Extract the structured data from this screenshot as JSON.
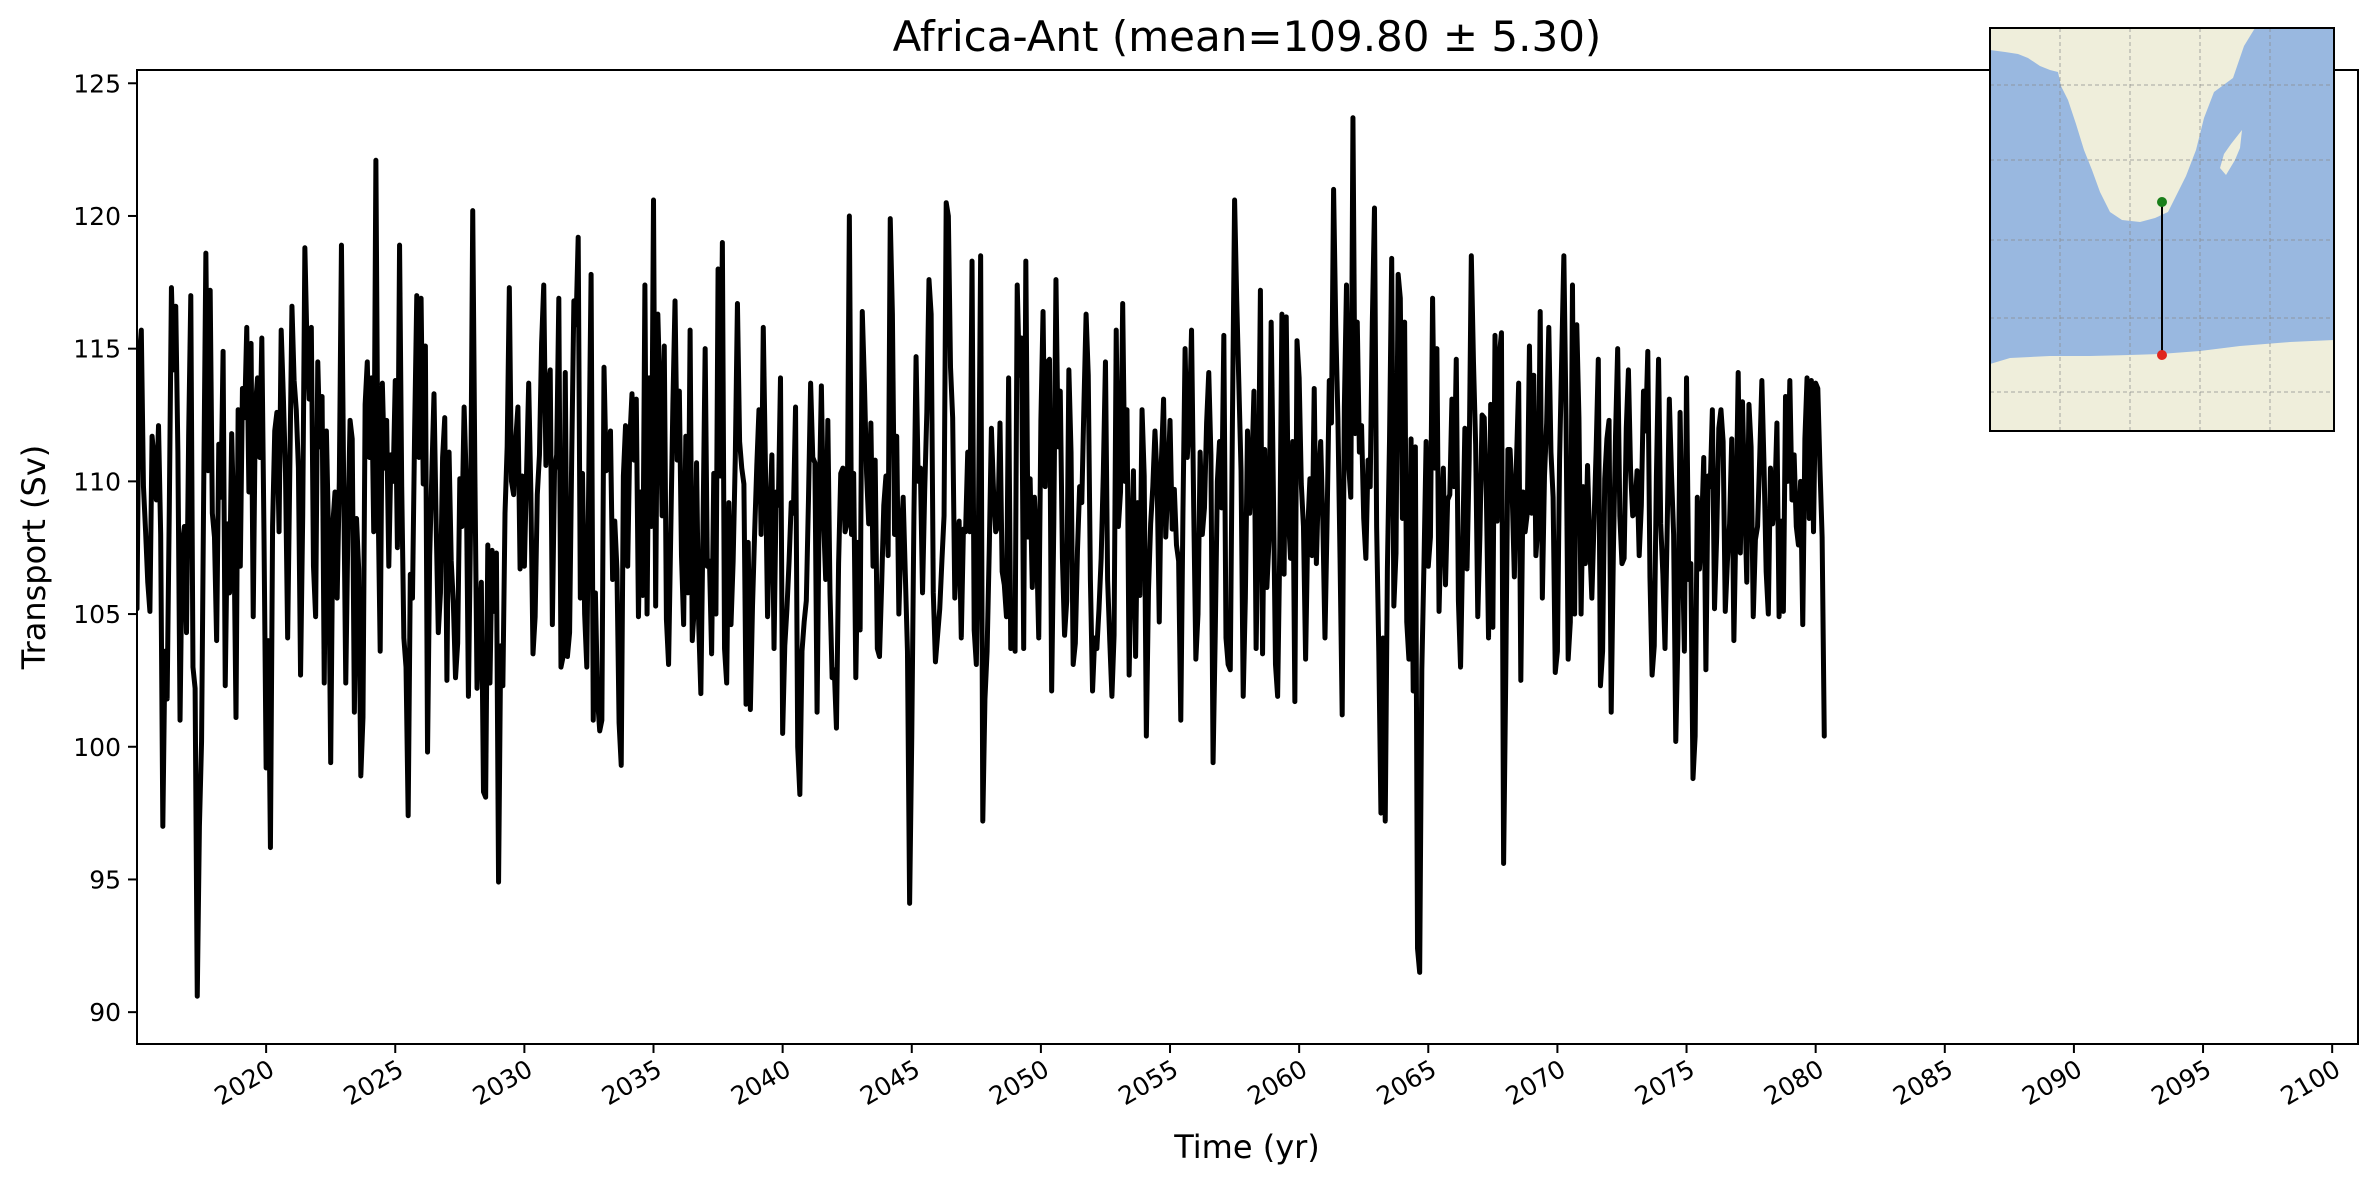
{
  "chart_data": {
    "type": "line",
    "title": "Africa-Ant (mean=109.80 ± 5.30)",
    "xlabel": "Time (yr)",
    "ylabel": "Transport (Sv)",
    "xlim": [
      2015.0,
      2101.0
    ],
    "ylim": [
      88.8,
      125.5
    ],
    "x_ticks": [
      2020,
      2025,
      2030,
      2035,
      2040,
      2045,
      2050,
      2055,
      2060,
      2065,
      2070,
      2075,
      2080,
      2085,
      2090,
      2095,
      2100
    ],
    "y_ticks": [
      90,
      95,
      100,
      105,
      110,
      115,
      120,
      125
    ],
    "x_tick_rotation": "30 degrees",
    "grid": false,
    "legend": "none",
    "series": [
      {
        "color": "#000000",
        "x_start": 2015.0,
        "x_step_months": 1,
        "values": [
          105.2,
          114.6,
          115.7,
          109.8,
          108.1,
          106.2,
          105.1,
          111.7,
          110.8,
          109.3,
          112.1,
          108.0,
          97.0,
          103.6,
          101.8,
          108.9,
          117.3,
          114.2,
          116.6,
          111.1,
          101.0,
          107.6,
          108.3,
          104.3,
          111.7,
          117.0,
          103.0,
          102.2,
          90.6,
          97.0,
          100.2,
          109.8,
          118.6,
          110.4,
          117.2,
          108.8,
          107.9,
          104.0,
          111.4,
          109.4,
          114.9,
          102.3,
          108.4,
          105.8,
          111.8,
          108.3,
          101.1,
          112.7,
          106.8,
          113.5,
          112.4,
          115.8,
          109.6,
          115.2,
          104.9,
          112.8,
          113.9,
          110.9,
          115.4,
          108.0,
          99.2,
          104.0,
          96.2,
          108.3,
          111.9,
          112.6,
          108.1,
          115.7,
          113.2,
          110.3,
          104.1,
          110.4,
          116.6,
          113.8,
          112.7,
          110.5,
          102.7,
          108.7,
          118.8,
          115.1,
          113.1,
          115.8,
          106.8,
          104.9,
          114.5,
          111.3,
          113.2,
          102.4,
          111.9,
          108.0,
          99.4,
          108.4,
          109.6,
          105.6,
          110.0,
          118.9,
          110.2,
          102.4,
          108.2,
          112.3,
          111.6,
          101.3,
          108.6,
          106.7,
          98.9,
          101.1,
          112.9,
          114.5,
          110.9,
          113.9,
          108.1,
          122.1,
          109.4,
          103.6,
          113.7,
          110.5,
          112.3,
          106.8,
          111.0,
          110.0,
          113.8,
          107.5,
          118.9,
          109.8,
          104.1,
          103.0,
          97.4,
          106.5,
          105.6,
          111.9,
          117.0,
          110.9,
          116.9,
          109.9,
          115.1,
          99.8,
          107.2,
          110.3,
          113.3,
          108.4,
          104.3,
          105.8,
          110.9,
          112.4,
          102.5,
          111.1,
          107.0,
          105.4,
          102.6,
          103.9,
          110.1,
          108.3,
          112.8,
          110.0,
          101.9,
          108.4,
          120.2,
          110.3,
          102.2,
          104.6,
          106.2,
          98.3,
          98.1,
          107.6,
          102.4,
          107.4,
          105.1,
          107.3,
          94.9,
          103.8,
          102.3,
          108.8,
          111.3,
          117.3,
          110.0,
          109.5,
          111.6,
          112.8,
          106.7,
          110.2,
          106.8,
          110.3,
          113.7,
          109.6,
          103.5,
          104.9,
          109.5,
          111.0,
          115.2,
          117.4,
          110.6,
          113.5,
          114.2,
          104.6,
          110.4,
          111.0,
          116.9,
          103.0,
          103.4,
          114.1,
          103.4,
          104.3,
          111.0,
          116.8,
          115.9,
          119.2,
          105.6,
          110.3,
          105.0,
          103.0,
          110.8,
          117.8,
          101.0,
          105.8,
          101.8,
          100.6,
          101.0,
          114.3,
          110.4,
          110.5,
          111.9,
          106.3,
          108.5,
          106.7,
          100.9,
          99.3,
          110.2,
          112.1,
          106.8,
          111.6,
          113.3,
          110.8,
          113.1,
          104.9,
          109.6,
          105.7,
          117.4,
          105.0,
          113.9,
          108.3,
          120.6,
          105.3,
          116.3,
          113.2,
          108.7,
          115.1,
          104.8,
          103.1,
          108.0,
          112.9,
          116.8,
          110.8,
          113.4,
          107.2,
          104.6,
          111.7,
          105.8,
          115.7,
          104.0,
          105.3,
          110.7,
          104.6,
          102.0,
          108.3,
          115.0,
          106.8,
          107.0,
          103.5,
          110.3,
          105.0,
          118.0,
          110.2,
          119.0,
          103.7,
          102.4,
          109.2,
          104.6,
          107.0,
          110.9,
          116.7,
          111.5,
          110.5,
          109.9,
          101.6,
          107.7,
          101.4,
          105.3,
          108.1,
          110.6,
          112.7,
          108.0,
          115.8,
          110.6,
          104.9,
          108.7,
          111.0,
          103.7,
          109.6,
          109.1,
          113.9,
          100.5,
          103.8,
          105.2,
          107.0,
          109.2,
          108.8,
          112.8,
          100.0,
          98.2,
          103.6,
          104.7,
          105.5,
          109.3,
          113.7,
          110.9,
          110.7,
          101.3,
          109.2,
          113.6,
          108.6,
          106.3,
          112.3,
          105.8,
          102.6,
          102.9,
          100.7,
          106.9,
          110.3,
          110.5,
          108.1,
          108.4,
          120.0,
          108.0,
          110.3,
          102.6,
          107.7,
          104.4,
          116.4,
          113.7,
          110.3,
          108.4,
          112.2,
          106.8,
          110.8,
          103.7,
          103.4,
          106.1,
          109.1,
          110.2,
          107.2,
          119.9,
          116.3,
          108.0,
          111.7,
          105.0,
          107.8,
          109.4,
          106.5,
          103.6,
          94.1,
          100.4,
          108.7,
          114.7,
          110.0,
          110.5,
          105.8,
          109.6,
          112.6,
          117.6,
          116.3,
          105.8,
          103.2,
          104.2,
          105.2,
          107.0,
          108.7,
          120.5,
          120.0,
          114.3,
          112.4,
          105.6,
          107.7,
          108.5,
          104.1,
          108.2,
          108.1,
          111.1,
          108.1,
          118.3,
          104.4,
          103.1,
          108.5,
          118.5,
          97.2,
          101.8,
          103.6,
          107.4,
          112.0,
          109.6,
          108.1,
          108.3,
          112.2,
          106.6,
          106.1,
          104.9,
          113.9,
          103.7,
          104.7,
          103.6,
          117.4,
          114.0,
          115.4,
          103.7,
          118.3,
          107.9,
          110.1,
          106.0,
          109.4,
          107.6,
          104.1,
          112.3,
          116.4,
          109.8,
          114.5,
          114.6,
          102.1,
          108.4,
          117.6,
          111.3,
          113.4,
          107.1,
          104.2,
          105.5,
          114.2,
          111.1,
          103.1,
          103.9,
          107.4,
          109.8,
          109.2,
          112.9,
          116.3,
          114.0,
          106.3,
          102.1,
          104.1,
          103.7,
          105.2,
          107.1,
          110.3,
          114.5,
          106.3,
          104.0,
          101.9,
          104.2,
          115.7,
          108.3,
          109.6,
          116.7,
          110.0,
          112.7,
          102.7,
          107.3,
          110.4,
          103.4,
          109.2,
          105.7,
          112.7,
          110.2,
          100.4,
          105.9,
          108.4,
          109.8,
          111.9,
          110.1,
          104.7,
          110.8,
          113.1,
          107.9,
          109.9,
          112.3,
          108.2,
          109.7,
          107.6,
          107.0,
          101.0,
          108.8,
          115.0,
          110.9,
          112.2,
          115.7,
          109.0,
          103.3,
          105.0,
          111.1,
          108.0,
          109.0,
          112.2,
          114.1,
          111.0,
          99.4,
          104.2,
          110.0,
          111.5,
          109.0,
          115.5,
          104.1,
          103.1,
          102.9,
          112.3,
          120.6,
          116.8,
          113.6,
          110.4,
          101.9,
          105.6,
          111.9,
          108.8,
          110.4,
          113.4,
          103.7,
          109.1,
          117.2,
          103.5,
          111.2,
          106.0,
          107.8,
          116.0,
          109.8,
          103.1,
          101.9,
          107.5,
          116.3,
          106.5,
          116.2,
          108.7,
          107.1,
          111.5,
          101.7,
          115.3,
          113.9,
          109.9,
          108.3,
          103.3,
          108.2,
          110.1,
          107.2,
          113.5,
          106.9,
          110.0,
          111.5,
          108.5,
          104.1,
          108.6,
          113.8,
          112.2,
          121.0,
          115.9,
          112.4,
          107.1,
          101.2,
          112.8,
          117.4,
          110.6,
          109.4,
          123.7,
          111.8,
          116.0,
          111.1,
          112.1,
          108.6,
          107.1,
          110.8,
          109.8,
          116.0,
          120.3,
          108.3,
          103.6,
          97.5,
          104.1,
          97.2,
          106.7,
          111.6,
          118.4,
          105.3,
          107.3,
          117.8,
          116.9,
          108.6,
          116.0,
          104.7,
          103.3,
          111.6,
          102.1,
          111.3,
          92.4,
          91.5,
          102.9,
          106.9,
          111.5,
          106.8,
          107.9,
          116.9,
          110.5,
          115.0,
          105.1,
          108.4,
          110.5,
          106.1,
          109.3,
          109.5,
          113.1,
          109.8,
          114.6,
          105.5,
          103.0,
          107.6,
          112.0,
          106.7,
          110.8,
          118.5,
          114.5,
          111.4,
          104.9,
          108.0,
          112.5,
          112.4,
          109.4,
          104.1,
          112.9,
          104.5,
          115.5,
          108.5,
          114.7,
          115.6,
          95.6,
          102.7,
          111.2,
          111.2,
          109.5,
          106.4,
          110.8,
          113.7,
          102.5,
          109.6,
          108.1,
          108.8,
          115.1,
          108.8,
          114.0,
          107.2,
          108.4,
          116.4,
          105.6,
          110.2,
          112.2,
          115.8,
          111.1,
          109.4,
          102.8,
          103.6,
          110.8,
          114.7,
          118.5,
          112.4,
          103.3,
          104.7,
          117.4,
          105.0,
          115.9,
          112.4,
          105.0,
          109.8,
          106.9,
          110.6,
          107.7,
          105.6,
          108.4,
          111.2,
          114.6,
          102.3,
          103.6,
          110.1,
          111.6,
          112.3,
          101.3,
          107.3,
          111.7,
          115.0,
          108.7,
          106.9,
          107.1,
          112.0,
          114.2,
          110.4,
          108.7,
          108.8,
          110.4,
          107.2,
          109.1,
          113.4,
          111.9,
          114.9,
          106.4,
          102.7,
          103.8,
          110.2,
          114.6,
          108.4,
          106.5,
          103.7,
          108.2,
          113.1,
          110.3,
          108.0,
          100.2,
          104.1,
          112.6,
          107.7,
          103.6,
          113.9,
          106.3,
          106.9,
          98.8,
          100.4,
          109.4,
          106.7,
          108.2,
          110.9,
          102.9,
          110.2,
          109.8,
          112.7,
          105.2,
          107.9,
          112.0,
          112.7,
          111.5,
          105.1,
          107.0,
          108.4,
          111.6,
          104.0,
          108.7,
          114.1,
          107.3,
          113.0,
          109.4,
          106.2,
          112.9,
          111.3,
          104.9,
          107.8,
          108.3,
          110.9,
          113.8,
          110.6,
          106.6,
          105.0,
          110.5,
          108.4,
          109.3,
          112.2,
          104.9,
          108.5,
          105.1,
          113.2,
          110.0,
          113.8,
          109.3,
          111.0,
          108.3,
          107.6,
          110.0,
          104.6,
          111.6,
          113.9,
          108.6,
          113.8,
          108.1,
          113.7,
          113.5,
          110.5,
          107.9,
          100.4
        ]
      }
    ],
    "inset_map": {
      "land_color": "#efeedb",
      "ocean_color": "#99b8e0",
      "section_start_color": "#1a7f1a",
      "section_end_color": "#e0261e",
      "section_line_color": "#000000"
    }
  }
}
